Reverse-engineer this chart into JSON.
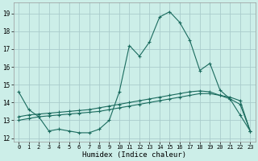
{
  "title": "",
  "xlabel": "Humidex (Indice chaleur)",
  "bg_color": "#cceee8",
  "grid_color": "#aacccc",
  "line_color": "#1a6b5e",
  "x": [
    0,
    1,
    2,
    3,
    4,
    5,
    6,
    7,
    8,
    9,
    10,
    11,
    12,
    13,
    14,
    15,
    16,
    17,
    18,
    19,
    20,
    21,
    22,
    23
  ],
  "line1": [
    14.6,
    13.6,
    13.2,
    12.4,
    12.5,
    12.4,
    12.3,
    12.3,
    12.5,
    13.0,
    14.6,
    17.2,
    16.6,
    17.4,
    18.8,
    19.1,
    18.5,
    17.5,
    15.8,
    16.2,
    14.7,
    14.2,
    13.3,
    12.4
  ],
  "line2": [
    13.0,
    13.1,
    13.2,
    13.25,
    13.3,
    13.35,
    13.4,
    13.45,
    13.5,
    13.6,
    13.7,
    13.8,
    13.9,
    14.0,
    14.1,
    14.2,
    14.3,
    14.4,
    14.5,
    14.5,
    14.4,
    14.3,
    14.1,
    12.4
  ],
  "line3": [
    13.2,
    13.3,
    13.35,
    13.4,
    13.45,
    13.5,
    13.55,
    13.6,
    13.7,
    13.8,
    13.9,
    14.0,
    14.1,
    14.2,
    14.3,
    14.4,
    14.5,
    14.6,
    14.65,
    14.6,
    14.4,
    14.2,
    13.9,
    12.4
  ],
  "xlim": [
    -0.5,
    23.5
  ],
  "ylim": [
    11.8,
    19.6
  ],
  "yticks": [
    12,
    13,
    14,
    15,
    16,
    17,
    18,
    19
  ],
  "xticks": [
    0,
    1,
    2,
    3,
    4,
    5,
    6,
    7,
    8,
    9,
    10,
    11,
    12,
    13,
    14,
    15,
    16,
    17,
    18,
    19,
    20,
    21,
    22,
    23
  ],
  "figwidth": 3.2,
  "figheight": 2.0,
  "dpi": 100
}
